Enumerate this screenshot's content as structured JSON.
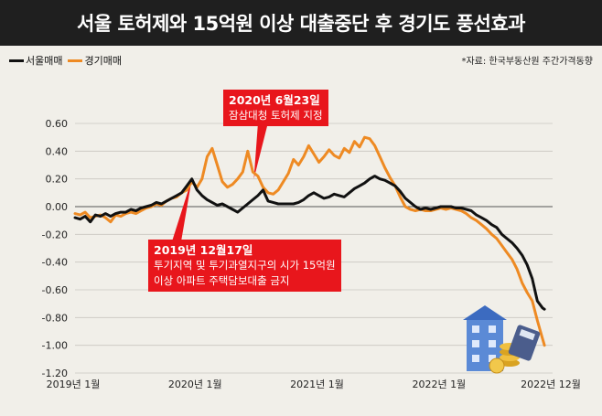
{
  "title": "서울 토허제와 15억원 이상 대출중단 후 경기도 풍선효과",
  "legend": {
    "seoul": "서울매매",
    "gyeonggi": "경기매매"
  },
  "source": "*자료: 한국부동산원 주간가격동향",
  "annotations": {
    "a1": {
      "title": "2020년 6월23일",
      "text": "잠삼대청 토허제 지정"
    },
    "a2": {
      "title": "2019년 12월17일",
      "line1": "투기지역 및 투기과열지구의 시가 15억원",
      "line2": "이상 아파트 주택담보대출 금지"
    }
  },
  "colors": {
    "seoul": "#111111",
    "gyeonggi": "#ee8a23",
    "annotation": "#e8161c",
    "header": "#1f1f1f"
  },
  "chart_data": {
    "type": "line",
    "x_unit": "months since 2019-01",
    "xticks": [
      {
        "x": 0,
        "label": "2019년 1월"
      },
      {
        "x": 12,
        "label": "2020년 1월"
      },
      {
        "x": 24,
        "label": "2021년 1월"
      },
      {
        "x": 36,
        "label": "2022년 1월"
      },
      {
        "x": 47,
        "label": "2022년 12월"
      }
    ],
    "yticks": [
      "0.60",
      "0.40",
      "0.20",
      "0.00",
      "-0.20",
      "-0.40",
      "-0.60",
      "-0.80",
      "-1.00",
      "-1.20"
    ],
    "ylim": [
      -1.2,
      0.6
    ],
    "grid": true,
    "series": [
      {
        "name": "서울매매",
        "color": "#111111",
        "points": [
          [
            0,
            -0.08
          ],
          [
            0.5,
            -0.09
          ],
          [
            1,
            -0.07
          ],
          [
            1.5,
            -0.11
          ],
          [
            2,
            -0.06
          ],
          [
            2.5,
            -0.07
          ],
          [
            3,
            -0.05
          ],
          [
            3.5,
            -0.07
          ],
          [
            4,
            -0.05
          ],
          [
            4.5,
            -0.04
          ],
          [
            5,
            -0.04
          ],
          [
            5.5,
            -0.02
          ],
          [
            6,
            -0.03
          ],
          [
            6.5,
            -0.01
          ],
          [
            7,
            0.0
          ],
          [
            7.5,
            0.01
          ],
          [
            8,
            0.03
          ],
          [
            8.5,
            0.02
          ],
          [
            9,
            0.04
          ],
          [
            9.5,
            0.06
          ],
          [
            10,
            0.08
          ],
          [
            10.5,
            0.1
          ],
          [
            11,
            0.15
          ],
          [
            11.5,
            0.2
          ],
          [
            12,
            0.12
          ],
          [
            12.5,
            0.08
          ],
          [
            13,
            0.05
          ],
          [
            13.5,
            0.03
          ],
          [
            14,
            0.01
          ],
          [
            14.5,
            0.02
          ],
          [
            15,
            0.0
          ],
          [
            15.5,
            -0.02
          ],
          [
            16,
            -0.04
          ],
          [
            16.5,
            -0.01
          ],
          [
            17,
            0.02
          ],
          [
            17.5,
            0.05
          ],
          [
            18,
            0.08
          ],
          [
            18.5,
            0.12
          ],
          [
            19,
            0.04
          ],
          [
            19.5,
            0.03
          ],
          [
            20,
            0.02
          ],
          [
            20.5,
            0.02
          ],
          [
            21,
            0.02
          ],
          [
            21.5,
            0.02
          ],
          [
            22,
            0.03
          ],
          [
            22.5,
            0.05
          ],
          [
            23,
            0.08
          ],
          [
            23.5,
            0.1
          ],
          [
            24,
            0.08
          ],
          [
            24.5,
            0.06
          ],
          [
            25,
            0.07
          ],
          [
            25.5,
            0.09
          ],
          [
            26,
            0.08
          ],
          [
            26.5,
            0.07
          ],
          [
            27,
            0.1
          ],
          [
            27.5,
            0.13
          ],
          [
            28,
            0.15
          ],
          [
            28.5,
            0.17
          ],
          [
            29,
            0.2
          ],
          [
            29.5,
            0.22
          ],
          [
            30,
            0.2
          ],
          [
            30.5,
            0.19
          ],
          [
            31,
            0.17
          ],
          [
            31.5,
            0.15
          ],
          [
            32,
            0.11
          ],
          [
            32.5,
            0.06
          ],
          [
            33,
            0.03
          ],
          [
            33.5,
            0.0
          ],
          [
            34,
            -0.02
          ],
          [
            34.5,
            -0.01
          ],
          [
            35,
            -0.02
          ],
          [
            35.5,
            -0.01
          ],
          [
            36,
            0.0
          ],
          [
            36.5,
            0.0
          ],
          [
            37,
            0.0
          ],
          [
            37.5,
            -0.01
          ],
          [
            38,
            -0.01
          ],
          [
            38.5,
            -0.02
          ],
          [
            39,
            -0.03
          ],
          [
            39.5,
            -0.06
          ],
          [
            40,
            -0.08
          ],
          [
            40.5,
            -0.1
          ],
          [
            41,
            -0.13
          ],
          [
            41.5,
            -0.15
          ],
          [
            42,
            -0.2
          ],
          [
            42.5,
            -0.23
          ],
          [
            43,
            -0.26
          ],
          [
            43.5,
            -0.3
          ],
          [
            44,
            -0.35
          ],
          [
            44.5,
            -0.42
          ],
          [
            45,
            -0.52
          ],
          [
            45.5,
            -0.68
          ],
          [
            46,
            -0.73
          ],
          [
            46.2,
            -0.74
          ]
        ]
      },
      {
        "name": "경기매매",
        "color": "#ee8a23",
        "points": [
          [
            0,
            -0.05
          ],
          [
            0.5,
            -0.06
          ],
          [
            1,
            -0.04
          ],
          [
            1.5,
            -0.08
          ],
          [
            2,
            -0.07
          ],
          [
            2.5,
            -0.06
          ],
          [
            3,
            -0.08
          ],
          [
            3.5,
            -0.11
          ],
          [
            4,
            -0.06
          ],
          [
            4.5,
            -0.07
          ],
          [
            5,
            -0.05
          ],
          [
            5.5,
            -0.04
          ],
          [
            6,
            -0.05
          ],
          [
            6.5,
            -0.03
          ],
          [
            7,
            -0.01
          ],
          [
            7.5,
            0.0
          ],
          [
            8,
            0.02
          ],
          [
            8.5,
            0.01
          ],
          [
            9,
            0.04
          ],
          [
            9.5,
            0.06
          ],
          [
            10,
            0.07
          ],
          [
            10.5,
            0.1
          ],
          [
            11,
            0.12
          ],
          [
            11.5,
            0.18
          ],
          [
            12,
            0.14
          ],
          [
            12.5,
            0.2
          ],
          [
            13,
            0.36
          ],
          [
            13.5,
            0.42
          ],
          [
            14,
            0.3
          ],
          [
            14.5,
            0.18
          ],
          [
            15,
            0.14
          ],
          [
            15.5,
            0.16
          ],
          [
            16,
            0.2
          ],
          [
            16.5,
            0.25
          ],
          [
            17,
            0.4
          ],
          [
            17.5,
            0.25
          ],
          [
            18,
            0.22
          ],
          [
            18.5,
            0.14
          ],
          [
            19,
            0.1
          ],
          [
            19.5,
            0.09
          ],
          [
            20,
            0.12
          ],
          [
            20.5,
            0.18
          ],
          [
            21,
            0.24
          ],
          [
            21.5,
            0.34
          ],
          [
            22,
            0.3
          ],
          [
            22.5,
            0.36
          ],
          [
            23,
            0.44
          ],
          [
            23.5,
            0.38
          ],
          [
            24,
            0.32
          ],
          [
            24.5,
            0.36
          ],
          [
            25,
            0.41
          ],
          [
            25.5,
            0.37
          ],
          [
            26,
            0.35
          ],
          [
            26.5,
            0.42
          ],
          [
            27,
            0.39
          ],
          [
            27.5,
            0.47
          ],
          [
            28,
            0.43
          ],
          [
            28.5,
            0.5
          ],
          [
            29,
            0.49
          ],
          [
            29.5,
            0.44
          ],
          [
            30,
            0.36
          ],
          [
            30.5,
            0.28
          ],
          [
            31,
            0.21
          ],
          [
            31.5,
            0.15
          ],
          [
            32,
            0.07
          ],
          [
            32.5,
            0.0
          ],
          [
            33,
            -0.02
          ],
          [
            33.5,
            -0.03
          ],
          [
            34,
            -0.02
          ],
          [
            34.5,
            -0.03
          ],
          [
            35,
            -0.03
          ],
          [
            35.5,
            -0.02
          ],
          [
            36,
            -0.01
          ],
          [
            36.5,
            -0.02
          ],
          [
            37,
            -0.01
          ],
          [
            37.5,
            -0.02
          ],
          [
            38,
            -0.03
          ],
          [
            38.5,
            -0.05
          ],
          [
            39,
            -0.08
          ],
          [
            39.5,
            -0.1
          ],
          [
            40,
            -0.13
          ],
          [
            40.5,
            -0.16
          ],
          [
            41,
            -0.2
          ],
          [
            41.5,
            -0.23
          ],
          [
            42,
            -0.28
          ],
          [
            42.5,
            -0.33
          ],
          [
            43,
            -0.38
          ],
          [
            43.5,
            -0.45
          ],
          [
            44,
            -0.55
          ],
          [
            44.5,
            -0.62
          ],
          [
            45,
            -0.68
          ],
          [
            45.5,
            -0.82
          ],
          [
            46,
            -0.95
          ],
          [
            46.2,
            -1.0
          ]
        ]
      }
    ]
  }
}
